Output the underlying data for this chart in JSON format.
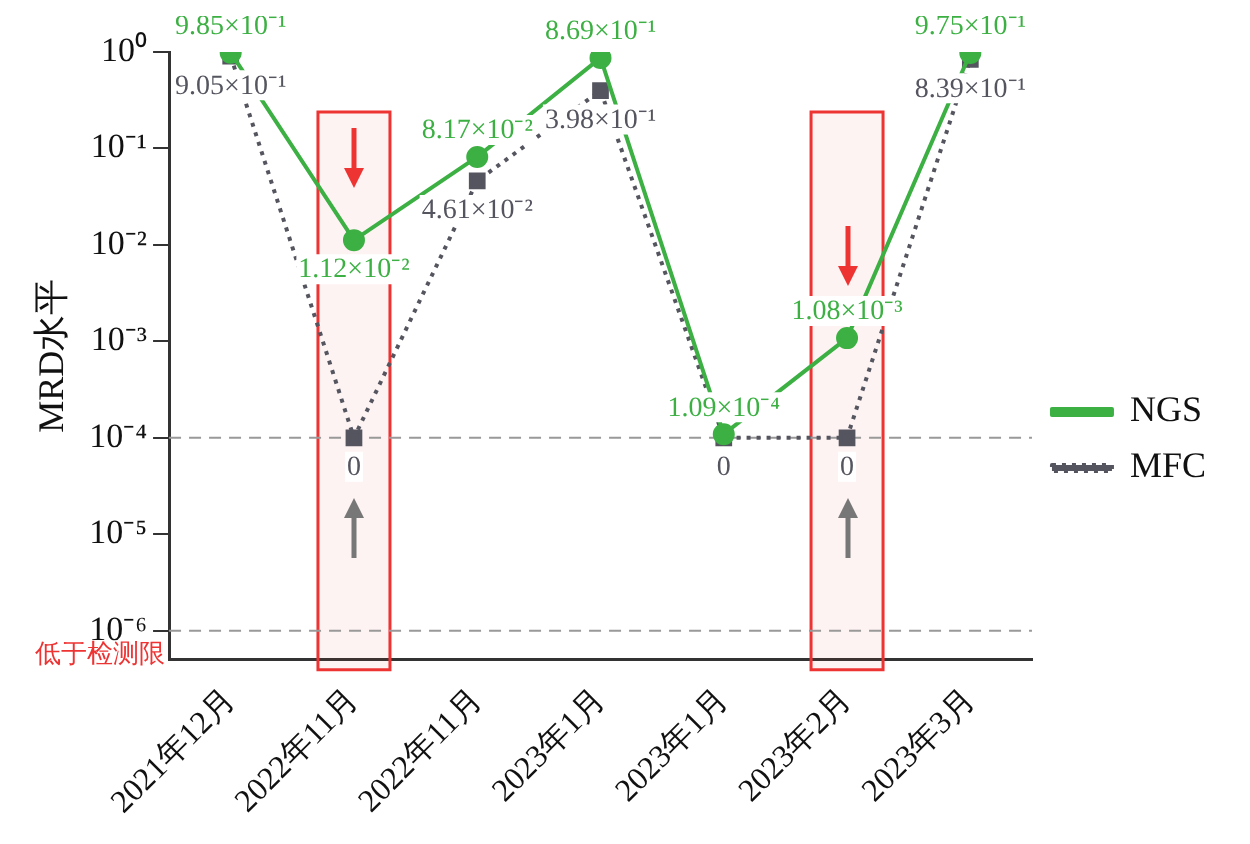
{
  "chart_data": {
    "type": "line",
    "ylabel": "MRD水平",
    "categories": [
      "2021年12月",
      "2022年11月",
      "2022年11月",
      "2023年1月",
      "2023年1月",
      "2023年2月",
      "2023年3月"
    ],
    "series": [
      {
        "name": "NGS",
        "color": "#3cb043",
        "marker": "circle",
        "line_style": "solid",
        "values": [
          0.985,
          0.0112,
          0.0817,
          0.869,
          0.000109,
          0.00108,
          0.975
        ],
        "value_labels": [
          "9.85×10⁻¹",
          "1.12×10⁻²",
          "8.17×10⁻²",
          "8.69×10⁻¹",
          "1.09×10⁻⁴",
          "1.08×10⁻³",
          "9.75×10⁻¹"
        ]
      },
      {
        "name": "MFC",
        "color": "#555560",
        "marker": "square",
        "line_style": "dotted",
        "values": [
          0.905,
          0.0001,
          0.0461,
          0.398,
          0.0001,
          0.0001,
          0.839
        ],
        "value_labels": [
          "9.05×10⁻¹",
          "0",
          "4.61×10⁻²",
          "3.98×10⁻¹",
          "0",
          "0",
          "8.39×10⁻¹"
        ]
      }
    ],
    "log": "y",
    "ylim": [
      5e-07,
      1
    ],
    "yticks": [
      {
        "value": 1,
        "label": "10⁰"
      },
      {
        "value": 0.1,
        "label": "10⁻¹"
      },
      {
        "value": 0.01,
        "label": "10⁻²"
      },
      {
        "value": 0.001,
        "label": "10⁻³"
      },
      {
        "value": 0.0001,
        "label": "10⁻⁴"
      },
      {
        "value": 1e-05,
        "label": "10⁻⁵"
      },
      {
        "value": 1e-06,
        "label": "10⁻⁶"
      }
    ],
    "ref_lines": [
      {
        "axis": "y",
        "value": 0.0001,
        "color": "#999999",
        "line_style": "dashed"
      },
      {
        "axis": "y",
        "value": 1e-06,
        "label": "低于检测限",
        "color": "#999999",
        "line_style": "dashed"
      }
    ],
    "bands": [
      {
        "axis": "x",
        "from": "2022年11月",
        "to": "2022年11月",
        "color": "#ee3333"
      },
      {
        "axis": "x",
        "from": "2023年2月",
        "to": "2023年2月",
        "color": "#ee3333"
      }
    ],
    "grid": false,
    "legend": "right"
  }
}
